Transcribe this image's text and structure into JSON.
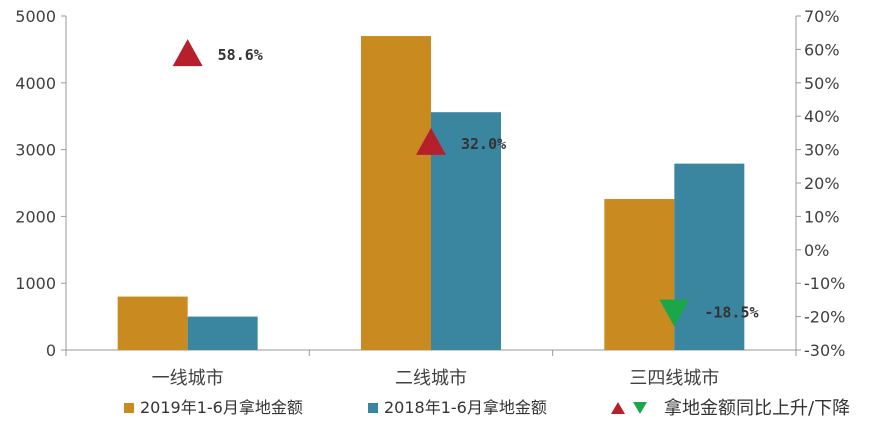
{
  "chart_data": {
    "type": "bar",
    "categories": [
      "一线城市",
      "二线城市",
      "三四线城市"
    ],
    "series": [
      {
        "name": "2019年1-6月拿地金额",
        "values": [
          800,
          4700,
          2260
        ],
        "color": "#C98B1F"
      },
      {
        "name": "2018年1-6月拿地金额",
        "values": [
          500,
          3560,
          2790
        ],
        "color": "#3A86A0"
      }
    ],
    "yoy": {
      "name": "拿地金额同比上升/下降",
      "values": [
        58.6,
        32.0,
        -18.5
      ],
      "labels": [
        "58.6%",
        "32.0%",
        "-18.5%"
      ],
      "up_color": "#B5202C",
      "down_color": "#1BA64A"
    },
    "y_left": {
      "min": 0,
      "max": 5000,
      "ticks": [
        "0",
        "1000",
        "2000",
        "3000",
        "4000",
        "5000"
      ]
    },
    "y_right": {
      "min": -30,
      "max": 70,
      "ticks": [
        "-30%",
        "-20%",
        "-10%",
        "0%",
        "10%",
        "20%",
        "30%",
        "40%",
        "50%",
        "60%",
        "70%"
      ]
    },
    "legend_position": "bottom",
    "grid": false
  }
}
